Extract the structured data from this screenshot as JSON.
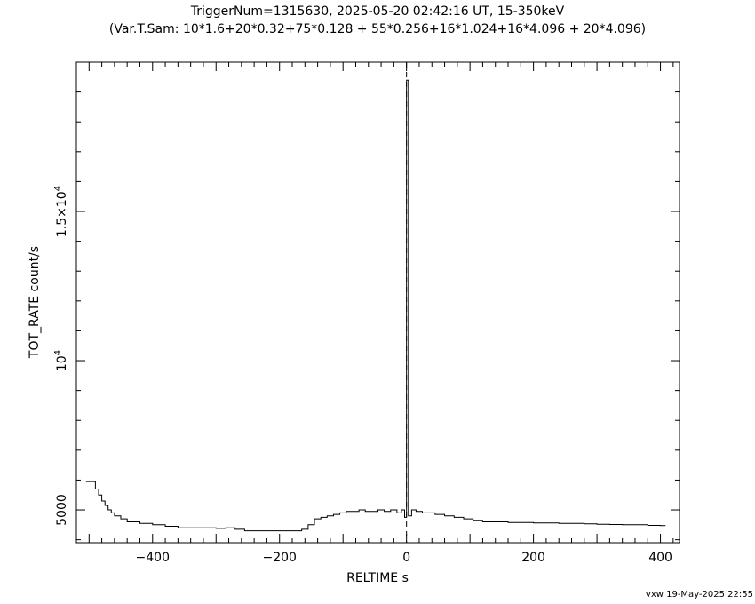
{
  "chart_data": {
    "type": "line",
    "title_line1": "TriggerNum=1315630, 2025-05-20 02:42:16 UT, 15-350keV",
    "title_line2": "(Var.T.Sam: 10*1.6+20*0.32+75*0.128  +  55*0.256+16*1.024+16*4.096  +  20*4.096)",
    "xlabel": "RELTIME  s",
    "ylabel": "TOT_RATE  count/s",
    "xlim": [
      -520,
      430
    ],
    "ylim": [
      3900,
      20000
    ],
    "x_ticks": [
      {
        "value": -400,
        "label": "−400"
      },
      {
        "value": -200,
        "label": "−200"
      },
      {
        "value": 0,
        "label": "0"
      },
      {
        "value": 200,
        "label": "200"
      },
      {
        "value": 400,
        "label": "400"
      }
    ],
    "y_ticks": [
      {
        "value": 5000,
        "mantissa": "5000",
        "exponent": ""
      },
      {
        "value": 10000,
        "mantissa": "10",
        "exponent": "4"
      },
      {
        "value": 15000,
        "mantissa": "1.5×10",
        "exponent": "4"
      }
    ],
    "vertical_reference_x": 0,
    "series": [
      {
        "style": "histogram-step",
        "x": [
          -505,
          -495,
          -490,
          -485,
          -480,
          -475,
          -470,
          -465,
          -460,
          -450,
          -440,
          -420,
          -400,
          -380,
          -360,
          -340,
          -320,
          -300,
          -285,
          -270,
          -255,
          -240,
          -225,
          -210,
          -195,
          -180,
          -165,
          -155,
          -145,
          -135,
          -125,
          -115,
          -105,
          -95,
          -85,
          -75,
          -65,
          -55,
          -45,
          -35,
          -25,
          -15,
          -8,
          -3,
          0,
          3,
          8,
          15,
          25,
          35,
          45,
          60,
          75,
          90,
          105,
          120,
          140,
          160,
          180,
          200,
          220,
          240,
          260,
          280,
          300,
          320,
          340,
          360,
          380,
          400
        ],
        "y": [
          5950,
          5950,
          5700,
          5500,
          5300,
          5150,
          5000,
          4900,
          4800,
          4700,
          4600,
          4550,
          4500,
          4450,
          4400,
          4400,
          4400,
          4380,
          4400,
          4350,
          4300,
          4300,
          4300,
          4300,
          4300,
          4300,
          4350,
          4500,
          4700,
          4750,
          4800,
          4850,
          4900,
          4950,
          4950,
          5000,
          4950,
          4950,
          5000,
          4950,
          5000,
          4900,
          5000,
          4750,
          19400,
          4800,
          5000,
          4950,
          4900,
          4900,
          4850,
          4800,
          4750,
          4700,
          4650,
          4600,
          4600,
          4580,
          4580,
          4560,
          4560,
          4550,
          4550,
          4530,
          4520,
          4510,
          4500,
          4500,
          4480,
          4470
        ]
      }
    ]
  },
  "footer": {
    "stamp": "vxw 19-May-2025 22:55"
  }
}
